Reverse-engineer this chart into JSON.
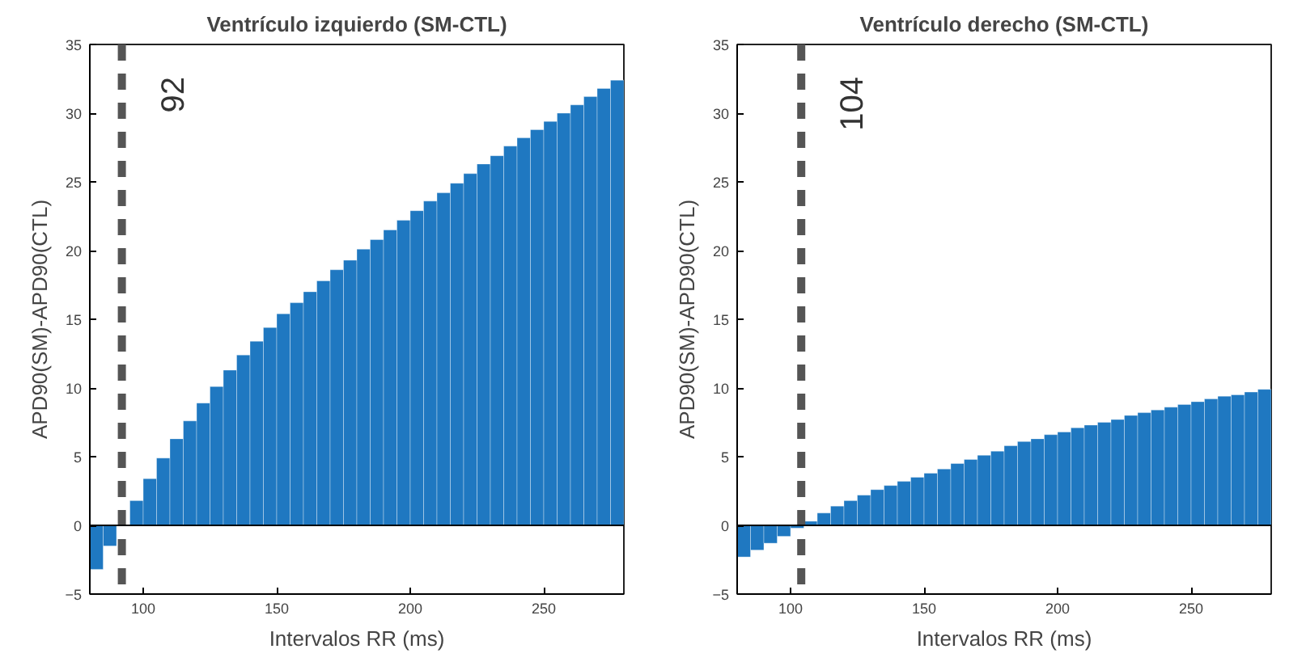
{
  "chart_data": [
    {
      "type": "bar",
      "title": "Ventrículo izquierdo (SM-CTL)",
      "xlabel": "Intervalos RR (ms)",
      "ylabel": "APD90(SM)-APD90(CTL)",
      "x": [
        82.5,
        87.5,
        92.5,
        97.5,
        102.5,
        107.5,
        112.5,
        117.5,
        122.5,
        127.5,
        132.5,
        137.5,
        142.5,
        147.5,
        152.5,
        157.5,
        162.5,
        167.5,
        172.5,
        177.5,
        182.5,
        187.5,
        192.5,
        197.5,
        202.5,
        207.5,
        212.5,
        217.5,
        222.5,
        227.5,
        232.5,
        237.5,
        242.5,
        247.5,
        252.5,
        257.5,
        262.5,
        267.5,
        272.5,
        277.5
      ],
      "values": [
        -3.2,
        -1.5,
        null,
        1.8,
        3.4,
        4.9,
        6.3,
        7.6,
        8.9,
        10.1,
        11.3,
        12.4,
        13.4,
        14.4,
        15.4,
        16.2,
        17.0,
        17.8,
        18.6,
        19.3,
        20.1,
        20.8,
        21.5,
        22.2,
        22.9,
        23.6,
        24.2,
        24.9,
        25.6,
        26.3,
        26.9,
        27.6,
        28.2,
        28.8,
        29.4,
        30.0,
        30.6,
        31.2,
        31.8,
        32.4
      ],
      "color": "#1f78c1",
      "xlim": [
        80,
        280
      ],
      "xticks": [
        100,
        150,
        200,
        250
      ],
      "ylim": [
        -5,
        35
      ],
      "yticks": [
        -5,
        0,
        5,
        10,
        15,
        20,
        25,
        30,
        35
      ],
      "grid": false,
      "ref_lines": [
        {
          "axis": "x",
          "value": 92,
          "label": "92",
          "color": "#555555",
          "line_style": "dashed"
        },
        {
          "axis": "y",
          "value": 0,
          "label": null,
          "color": "#000000",
          "line_style": "solid"
        }
      ]
    },
    {
      "type": "bar",
      "title": "Ventrículo derecho (SM-CTL)",
      "xlabel": "Intervalos RR (ms)",
      "ylabel": "APD90(SM)-APD90(CTL)",
      "x": [
        82.5,
        87.5,
        92.5,
        97.5,
        102.5,
        107.5,
        112.5,
        117.5,
        122.5,
        127.5,
        132.5,
        137.5,
        142.5,
        147.5,
        152.5,
        157.5,
        162.5,
        167.5,
        172.5,
        177.5,
        182.5,
        187.5,
        192.5,
        197.5,
        202.5,
        207.5,
        212.5,
        217.5,
        222.5,
        227.5,
        232.5,
        237.5,
        242.5,
        247.5,
        252.5,
        257.5,
        262.5,
        267.5,
        272.5,
        277.5
      ],
      "values": [
        -2.3,
        -1.8,
        -1.3,
        -0.8,
        -0.2,
        0.3,
        0.9,
        1.4,
        1.8,
        2.2,
        2.6,
        2.9,
        3.2,
        3.5,
        3.8,
        4.1,
        4.5,
        4.8,
        5.1,
        5.4,
        5.8,
        6.1,
        6.3,
        6.6,
        6.8,
        7.1,
        7.3,
        7.5,
        7.7,
        8.0,
        8.2,
        8.4,
        8.6,
        8.8,
        9.0,
        9.2,
        9.4,
        9.5,
        9.7,
        9.9
      ],
      "color": "#1f78c1",
      "xlim": [
        80,
        280
      ],
      "xticks": [
        100,
        150,
        200,
        250
      ],
      "ylim": [
        -5,
        35
      ],
      "yticks": [
        -5,
        0,
        5,
        10,
        15,
        20,
        25,
        30,
        35
      ],
      "grid": false,
      "ref_lines": [
        {
          "axis": "x",
          "value": 104,
          "label": "104",
          "color": "#555555",
          "line_style": "dashed"
        },
        {
          "axis": "y",
          "value": 0,
          "label": null,
          "color": "#000000",
          "line_style": "solid"
        }
      ]
    }
  ]
}
